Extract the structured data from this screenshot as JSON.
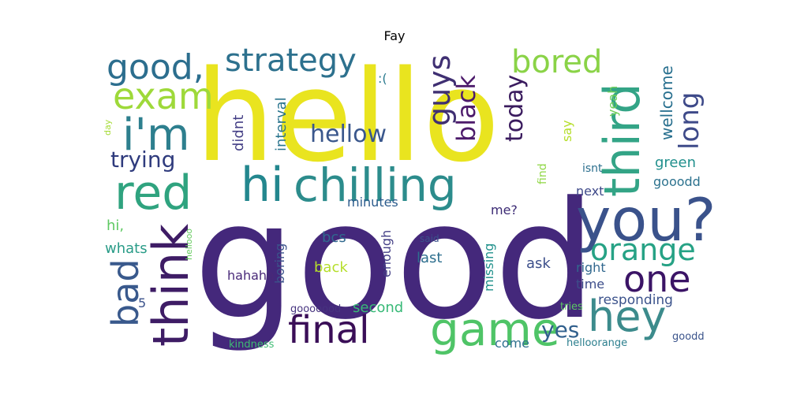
{
  "title": "Fay",
  "words": [
    {
      "text": "hello",
      "color": "#e9e41f"
    },
    {
      "text": "good",
      "color": "#44287b"
    },
    {
      "text": "third",
      "color": "#33a486"
    },
    {
      "text": "you?",
      "color": "#3a528b"
    },
    {
      "text": "chilling",
      "color": "#2c8c8c"
    },
    {
      "text": "red",
      "color": "#2fa37f"
    },
    {
      "text": "hi",
      "color": "#23878e"
    },
    {
      "text": "i'm",
      "color": "#2d7f8e"
    },
    {
      "text": "think",
      "color": "#3e1c65"
    },
    {
      "text": "game",
      "color": "#4fc467"
    },
    {
      "text": "hey",
      "color": "#3c8b8c"
    },
    {
      "text": "final",
      "color": "#3a0e57"
    },
    {
      "text": "bad",
      "color": "#39598c"
    },
    {
      "text": "one",
      "color": "#3b1466"
    },
    {
      "text": "exam",
      "color": "#9ed93a"
    },
    {
      "text": "good,",
      "color": "#2c6e8e"
    },
    {
      "text": "strategy",
      "color": "#2d718e"
    },
    {
      "text": "bored",
      "color": "#8ad347"
    },
    {
      "text": "guys",
      "color": "#3f2f72"
    },
    {
      "text": "orange",
      "color": "#26a285"
    },
    {
      "text": "long",
      "color": "#3e4a89"
    },
    {
      "text": "black",
      "color": "#4c1a6b"
    },
    {
      "text": "hellow",
      "color": "#3a578c"
    },
    {
      "text": "today",
      "color": "#3a1b5e"
    },
    {
      "text": "trying",
      "color": "#2f3b7d"
    },
    {
      "text": "yes",
      "color": "#31608d"
    },
    {
      "text": "wellcome",
      "color": "#276f8e"
    },
    {
      "text": "green",
      "color": "#21908d"
    },
    {
      "text": "interval",
      "color": "#2b758e"
    },
    {
      "text": "didnt",
      "color": "#433e85"
    },
    {
      "text": "yeah",
      "color": "#6ece58"
    },
    {
      "text": "say",
      "color": "#b5de2b"
    },
    {
      "text": "find",
      "color": "#8fd744"
    },
    {
      "text": "isnt",
      "color": "#2c6f8e"
    },
    {
      "text": "gooodd",
      "color": "#2c728e"
    },
    {
      "text": "next",
      "color": "#3e4989"
    },
    {
      "text": "minutes",
      "color": "#2b5b8c"
    },
    {
      "text": "me?",
      "color": "#3b2a74"
    },
    {
      "text": "hi,",
      "color": "#5ec962"
    },
    {
      "text": "whats",
      "color": "#2a9c88"
    },
    {
      "text": "boring",
      "color": "#3b528b"
    },
    {
      "text": "bcs",
      "color": "#30688e"
    },
    {
      "text": "enough",
      "color": "#433e85"
    },
    {
      "text": "last",
      "color": "#2e6f8e"
    },
    {
      "text": "missing",
      "color": "#21918c"
    },
    {
      "text": "ask",
      "color": "#3c4f8a"
    },
    {
      "text": "right",
      "color": "#31688e"
    },
    {
      "text": "time",
      "color": "#3d4d8a"
    },
    {
      "text": "back",
      "color": "#b5de2b"
    },
    {
      "text": "hahaha",
      "color": "#482878"
    },
    {
      "text": "second",
      "color": "#38b977"
    },
    {
      "text": "responding",
      "color": "#3b528b"
    },
    {
      "text": "come",
      "color": "#2d708e"
    },
    {
      "text": "tries",
      "color": "#5cc863"
    },
    {
      "text": "helloorange",
      "color": "#2c7f8e"
    },
    {
      "text": "goodd",
      "color": "#3a538b"
    },
    {
      "text": "gooooood",
      "color": "#46337f"
    },
    {
      "text": "kindness",
      "color": "#3ebc73"
    },
    {
      "text": "5",
      "color": "#3b528b"
    },
    {
      "text": ":(",
      "color": "#2a7a8e"
    },
    {
      "text": "day",
      "color": "#a5db36"
    },
    {
      "text": "said",
      "color": "#3b528b"
    },
    {
      "text": "hellooo",
      "color": "#65cb5e"
    }
  ]
}
